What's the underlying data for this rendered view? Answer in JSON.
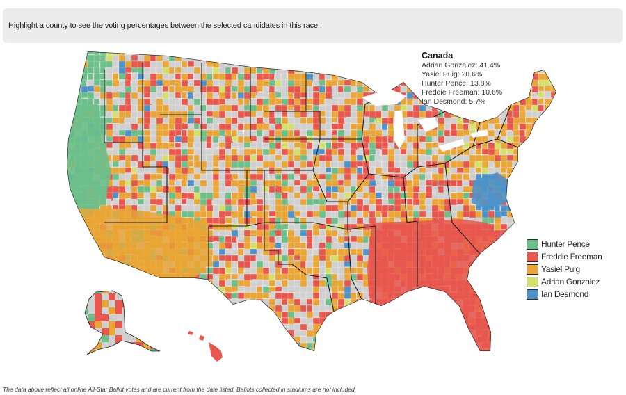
{
  "banner": {
    "text": "Highlight a county to see the voting percentages between the selected candidates in this race."
  },
  "info_box": {
    "title": "Canada",
    "lines": [
      "Adrian Gonzalez: 41.4%",
      "Yasiel Puig: 28.6%",
      "Hunter Pence: 13.8%",
      "Freddie Freeman: 10.6%",
      "Ian Desmond: 5.7%"
    ]
  },
  "legend": {
    "items": [
      {
        "label": "Hunter Pence",
        "color": "#6dbf8a"
      },
      {
        "label": "Freddie Freeman",
        "color": "#e8574d"
      },
      {
        "label": "Yasiel Puig",
        "color": "#e9a535"
      },
      {
        "label": "Adrian Gonzalez",
        "color": "#d4e06a"
      },
      {
        "label": "Ian Desmond",
        "color": "#4d93c9"
      }
    ]
  },
  "map": {
    "no_data_color": "#d0d0d0",
    "border_color": "#1e1e1e"
  },
  "footnote": {
    "text": "The data above reflect all online All-Star Ballot votes and are current from the date listed. Ballots collected in stadiums are not included."
  }
}
